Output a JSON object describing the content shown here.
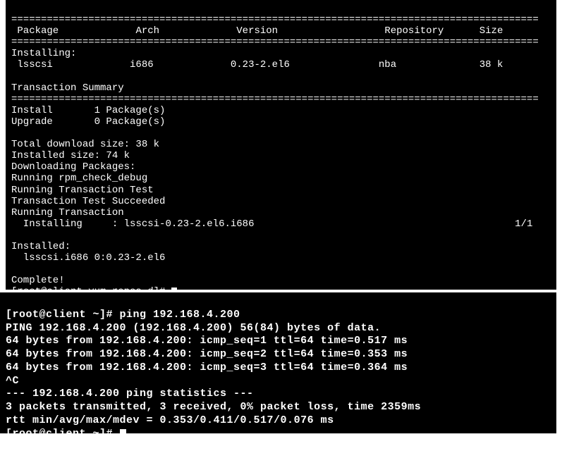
{
  "colors": {
    "bg": "#000000",
    "fg": "#ffffff",
    "page_bg": "#ffffff"
  },
  "typography": {
    "font_family": "Courier New, monospace",
    "term1_fontsize": 14,
    "term2_fontsize": 15,
    "term2_bold": true
  },
  "term1": {
    "rule_top": "=========================================================================================",
    "header_package": " Package",
    "header_arch": "Arch",
    "header_version": "Version",
    "header_repo": "Repository",
    "header_size": "Size",
    "rule_hdr": "=========================================================================================",
    "installing": "Installing:",
    "pkg_name": " lsscsi",
    "pkg_arch": "i686",
    "pkg_ver": "0.23-2.el6",
    "pkg_repo": "nba",
    "pkg_size": "38 k",
    "tx_summary": "Transaction Summary",
    "rule_tx": "=========================================================================================",
    "install_cnt_label": "Install",
    "install_cnt": "1 Package(s)",
    "upgrade_cnt_label": "Upgrade",
    "upgrade_cnt": "0 Package(s)",
    "dl_total": "Total download size: 38 k",
    "installed_size": "Installed size: 74 k",
    "dl_pkgs": "Downloading Packages:",
    "rpm_check": "Running rpm_check_debug",
    "run_tx_test": "Running Transaction Test",
    "tx_test_ok": "Transaction Test Succeeded",
    "run_tx": "Running Transaction",
    "inst_line_label": "  Installing",
    "inst_line_pkg": ": lsscsi-0.23-2.el6.i686",
    "inst_line_count": "1/1",
    "installed_hdr": "Installed:",
    "installed_pkg": "  lsscsi.i686 0:0.23-2.el6",
    "complete": "Complete!",
    "prompt": "[root@client yum.repos.d]# "
  },
  "term2": {
    "cmd": "[root@client ~]# ping 192.168.4.200",
    "hdr": "PING 192.168.4.200 (192.168.4.200) 56(84) bytes of data.",
    "line1": "64 bytes from 192.168.4.200: icmp_seq=1 ttl=64 time=0.517 ms",
    "line2": "64 bytes from 192.168.4.200: icmp_seq=2 ttl=64 time=0.353 ms",
    "line3": "64 bytes from 192.168.4.200: icmp_seq=3 ttl=64 time=0.364 ms",
    "ctrlc": "^C",
    "stats_hdr": "--- 192.168.4.200 ping statistics ---",
    "stats1": "3 packets transmitted, 3 received, 0% packet loss, time 2359ms",
    "stats2": "rtt min/avg/max/mdev = 0.353/0.411/0.517/0.076 ms",
    "prompt": "[root@client ~]# "
  }
}
